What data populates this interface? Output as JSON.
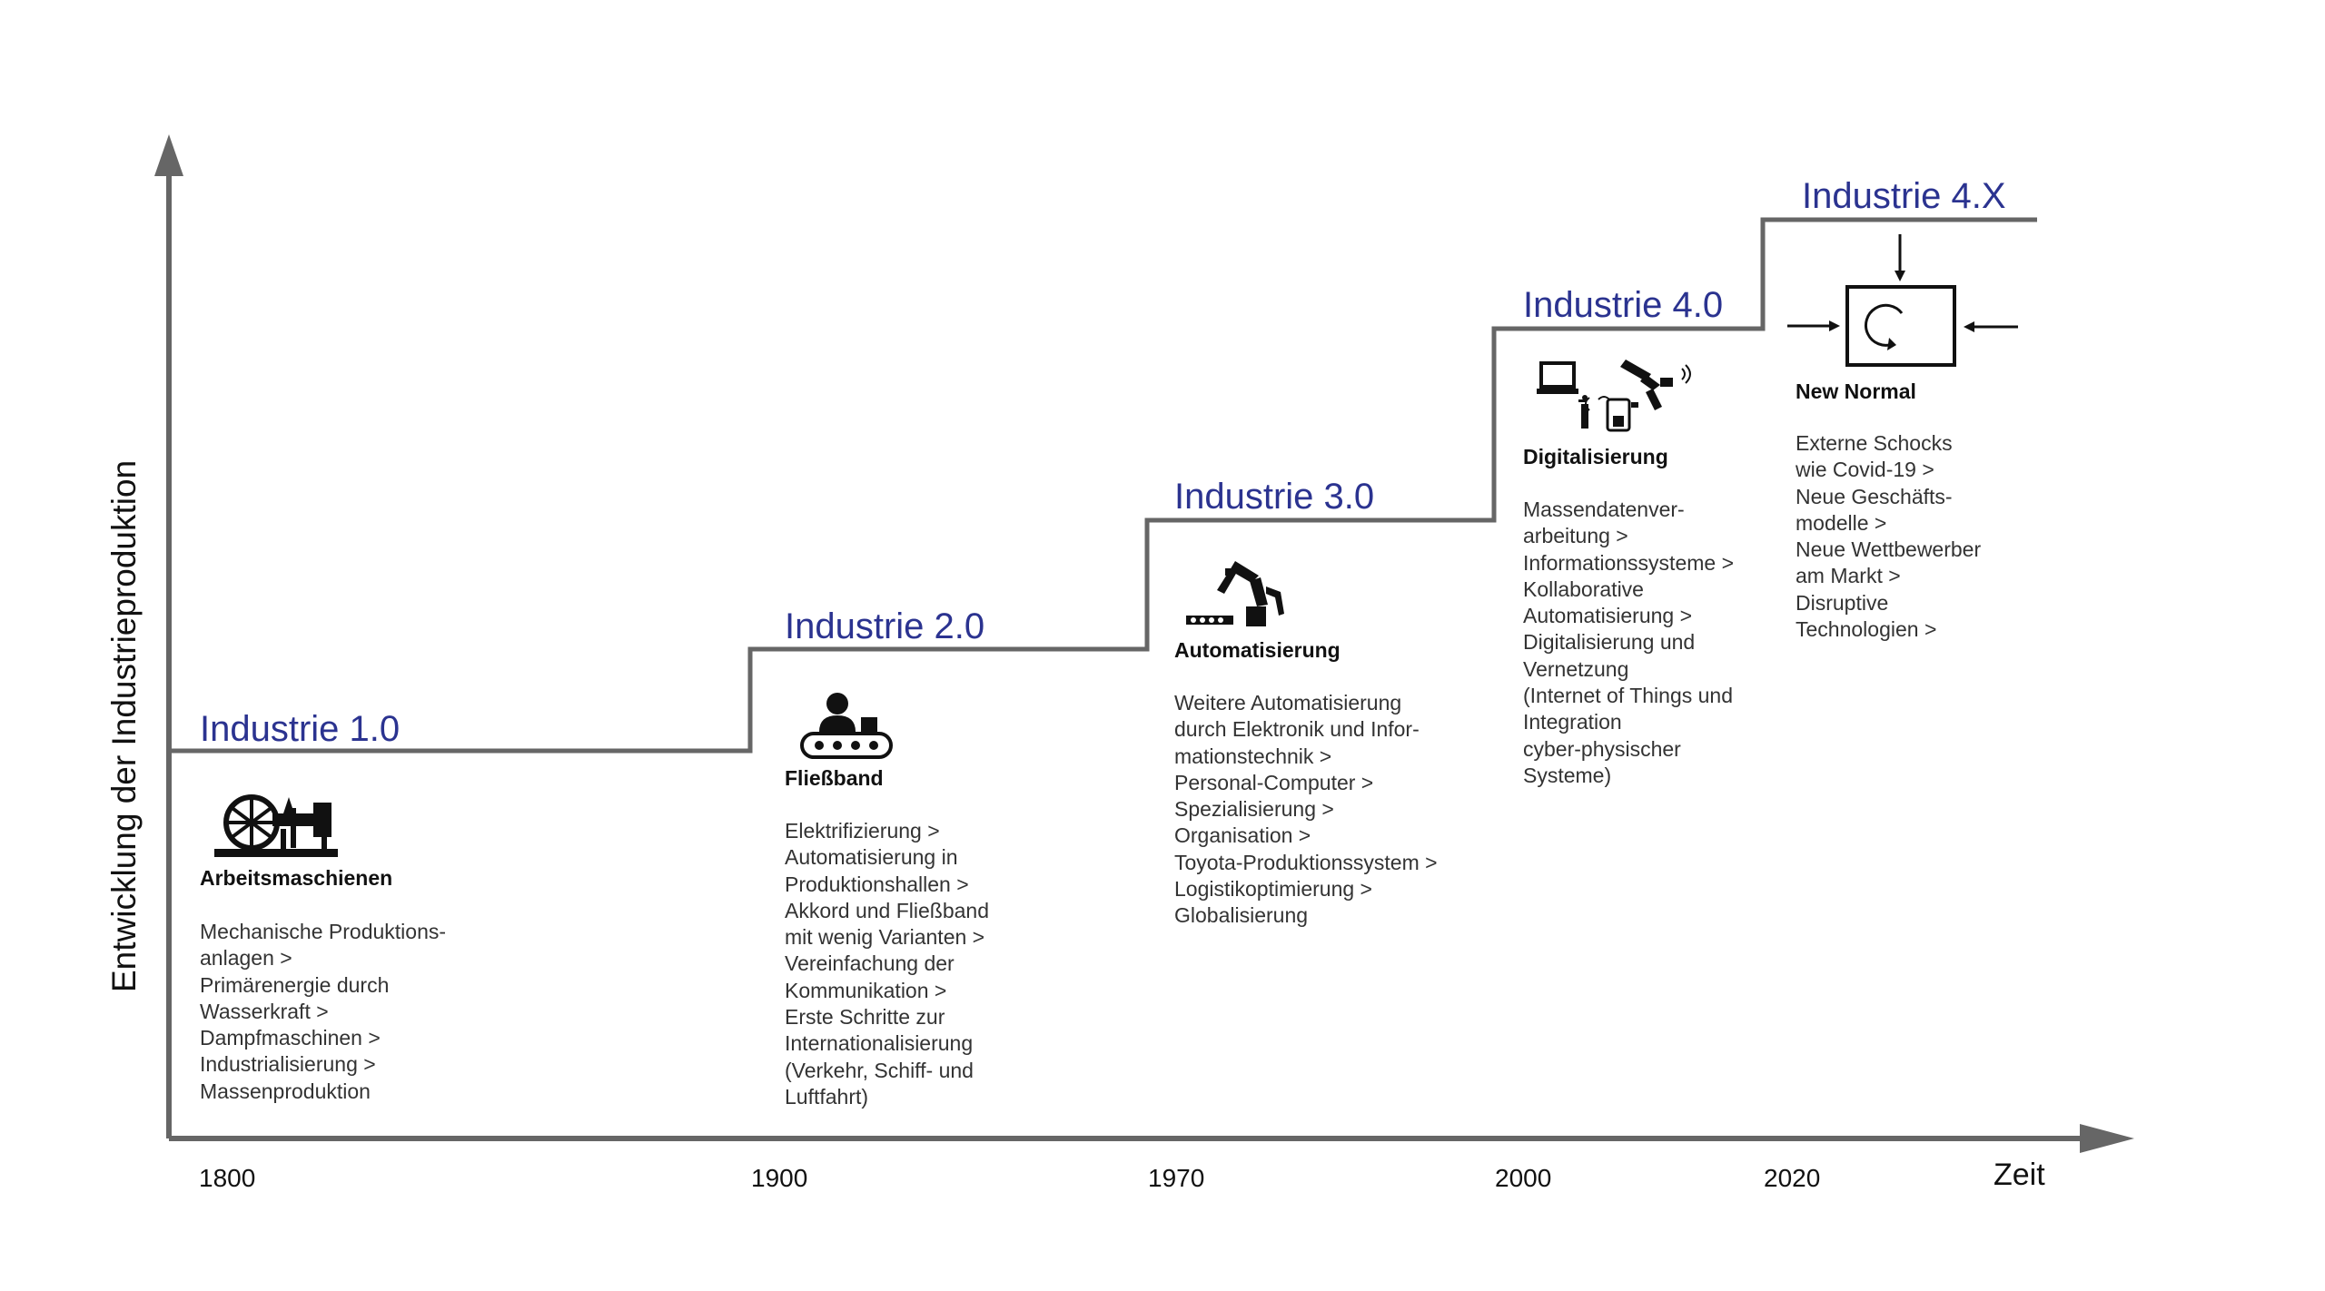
{
  "axes": {
    "y_label": "Entwicklung der Industrieproduktion",
    "x_label": "Zeit",
    "years": [
      "1800",
      "1900",
      "1970",
      "2000",
      "2020"
    ]
  },
  "colors": {
    "title": "#2b3390",
    "line": "#666666",
    "text": "#333333"
  },
  "stages": [
    {
      "title": "Industrie 1.0",
      "icon": "steam-engine-icon",
      "label": "Arbeitsmaschienen",
      "lines": [
        "Mechanische Produktions-",
        "anlagen >",
        "Primärenergie durch",
        "Wasserkraft >",
        "Dampfmaschinen >",
        "Industrialisierung >",
        "Massenproduktion"
      ]
    },
    {
      "title": "Industrie 2.0",
      "icon": "conveyor-belt-icon",
      "label": "Fließband",
      "lines": [
        "Elektrifizierung >",
        "Automatisierung in",
        "Produktionshallen >",
        "Akkord und Fließband",
        "mit wenig Varianten >",
        "Vereinfachung der",
        "Kommunikation >",
        "Erste Schritte zur",
        "Internationalisierung",
        "(Verkehr, Schiff- und",
        "Luftfahrt)"
      ]
    },
    {
      "title": "Industrie 3.0",
      "icon": "robot-arm-icon",
      "label": "Automatisierung",
      "lines": [
        "Weitere Automatisierung",
        "durch Elektronik und Infor-",
        "mationstechnik >",
        "Personal-Computer >",
        "Spezialisierung >",
        "Organisation >",
        "Toyota-Produktionssystem >",
        "Logistikoptimierung >",
        "Globalisierung"
      ]
    },
    {
      "title": "Industrie 4.0",
      "icon": "digital-devices-icon",
      "label": "Digitalisierung",
      "lines": [
        "Massendatenver-",
        "arbeitung >",
        "Informationssysteme >",
        "Kollaborative",
        "Automatisierung >",
        "Digitalisierung und",
        "Vernetzung",
        "(Internet of Things und",
        "Integration",
        "cyber-physischer",
        "Systeme)"
      ]
    },
    {
      "title": "Industrie 4.X",
      "icon": "external-shock-icon",
      "label": "New Normal",
      "lines": [
        "Externe Schocks",
        "wie Covid-19 >",
        "Neue Geschäfts-",
        "modelle >",
        "Neue Wettbewerber",
        "am Markt >",
        "Disruptive",
        "Technologien >"
      ]
    }
  ]
}
